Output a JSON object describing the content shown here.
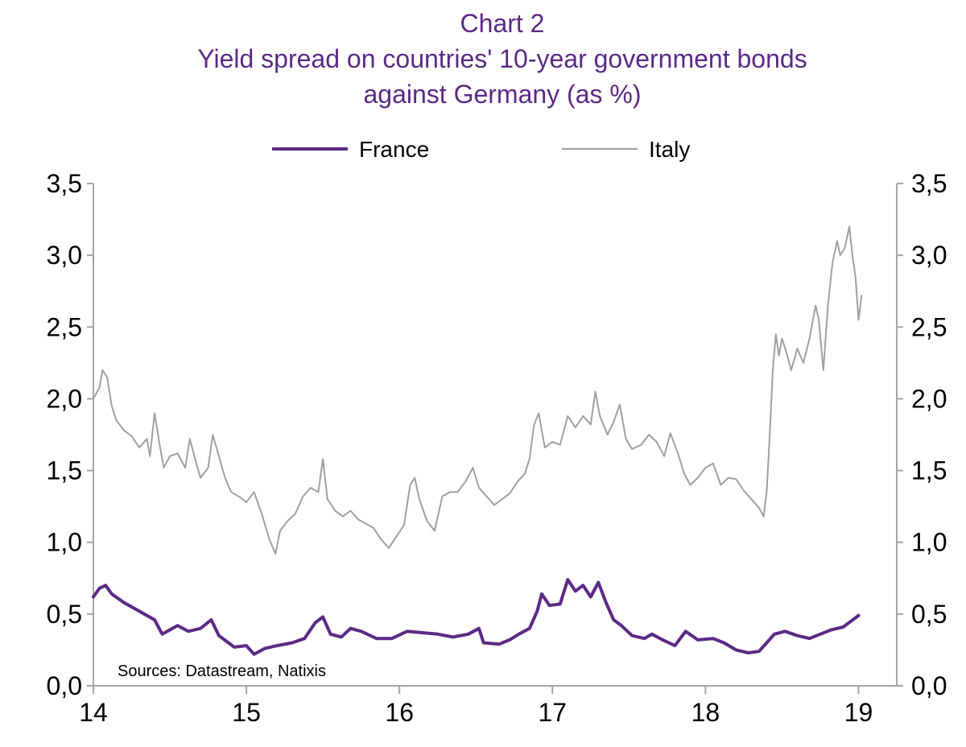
{
  "chart_data": {
    "type": "line",
    "title": [
      "Chart 2",
      "Yield spread on countries' 10-year government bonds",
      "against Germany (as %)"
    ],
    "xlabel": "",
    "ylabel": "",
    "x_ticks": [
      "14",
      "15",
      "16",
      "17",
      "18",
      "19"
    ],
    "y_ticks": [
      "0,0",
      "0,5",
      "1,0",
      "1,5",
      "2,0",
      "2,5",
      "3,0",
      "3,5"
    ],
    "xlim": [
      14,
      19.25
    ],
    "ylim": [
      0,
      3.5
    ],
    "legend_position": "top-center",
    "source": "Sources: Datastream, Natixis",
    "series": [
      {
        "name": "France",
        "color": "#5b2a86",
        "points": [
          [
            14.0,
            0.62
          ],
          [
            14.04,
            0.68
          ],
          [
            14.08,
            0.7
          ],
          [
            14.12,
            0.64
          ],
          [
            14.2,
            0.58
          ],
          [
            14.3,
            0.52
          ],
          [
            14.4,
            0.46
          ],
          [
            14.45,
            0.36
          ],
          [
            14.55,
            0.42
          ],
          [
            14.62,
            0.38
          ],
          [
            14.7,
            0.4
          ],
          [
            14.77,
            0.46
          ],
          [
            14.82,
            0.35
          ],
          [
            14.92,
            0.27
          ],
          [
            15.0,
            0.28
          ],
          [
            15.05,
            0.22
          ],
          [
            15.12,
            0.26
          ],
          [
            15.2,
            0.28
          ],
          [
            15.3,
            0.3
          ],
          [
            15.38,
            0.33
          ],
          [
            15.45,
            0.44
          ],
          [
            15.5,
            0.48
          ],
          [
            15.55,
            0.36
          ],
          [
            15.62,
            0.34
          ],
          [
            15.68,
            0.4
          ],
          [
            15.75,
            0.38
          ],
          [
            15.85,
            0.33
          ],
          [
            15.95,
            0.33
          ],
          [
            16.05,
            0.38
          ],
          [
            16.15,
            0.37
          ],
          [
            16.25,
            0.36
          ],
          [
            16.35,
            0.34
          ],
          [
            16.45,
            0.36
          ],
          [
            16.52,
            0.4
          ],
          [
            16.55,
            0.3
          ],
          [
            16.65,
            0.29
          ],
          [
            16.72,
            0.32
          ],
          [
            16.78,
            0.36
          ],
          [
            16.85,
            0.4
          ],
          [
            16.9,
            0.52
          ],
          [
            16.93,
            0.64
          ],
          [
            16.98,
            0.56
          ],
          [
            17.05,
            0.57
          ],
          [
            17.1,
            0.74
          ],
          [
            17.15,
            0.66
          ],
          [
            17.2,
            0.7
          ],
          [
            17.25,
            0.62
          ],
          [
            17.3,
            0.72
          ],
          [
            17.35,
            0.58
          ],
          [
            17.4,
            0.46
          ],
          [
            17.45,
            0.42
          ],
          [
            17.52,
            0.35
          ],
          [
            17.6,
            0.33
          ],
          [
            17.65,
            0.36
          ],
          [
            17.72,
            0.32
          ],
          [
            17.8,
            0.28
          ],
          [
            17.87,
            0.38
          ],
          [
            17.95,
            0.32
          ],
          [
            18.05,
            0.33
          ],
          [
            18.12,
            0.3
          ],
          [
            18.2,
            0.25
          ],
          [
            18.28,
            0.23
          ],
          [
            18.35,
            0.24
          ],
          [
            18.4,
            0.3
          ],
          [
            18.45,
            0.36
          ],
          [
            18.52,
            0.38
          ],
          [
            18.6,
            0.35
          ],
          [
            18.68,
            0.33
          ],
          [
            18.75,
            0.36
          ],
          [
            18.82,
            0.39
          ],
          [
            18.9,
            0.41
          ],
          [
            18.95,
            0.45
          ],
          [
            19.0,
            0.49
          ]
        ]
      },
      {
        "name": "Italy",
        "color": "#a0a0a0",
        "points": [
          [
            14.0,
            2.0
          ],
          [
            14.04,
            2.08
          ],
          [
            14.06,
            2.2
          ],
          [
            14.09,
            2.15
          ],
          [
            14.12,
            1.95
          ],
          [
            14.15,
            1.85
          ],
          [
            14.2,
            1.78
          ],
          [
            14.25,
            1.74
          ],
          [
            14.3,
            1.66
          ],
          [
            14.35,
            1.72
          ],
          [
            14.37,
            1.6
          ],
          [
            14.4,
            1.9
          ],
          [
            14.43,
            1.7
          ],
          [
            14.46,
            1.52
          ],
          [
            14.5,
            1.6
          ],
          [
            14.55,
            1.62
          ],
          [
            14.6,
            1.52
          ],
          [
            14.63,
            1.72
          ],
          [
            14.67,
            1.56
          ],
          [
            14.7,
            1.45
          ],
          [
            14.75,
            1.52
          ],
          [
            14.78,
            1.75
          ],
          [
            14.82,
            1.6
          ],
          [
            14.86,
            1.45
          ],
          [
            14.9,
            1.35
          ],
          [
            14.95,
            1.32
          ],
          [
            15.0,
            1.28
          ],
          [
            15.05,
            1.35
          ],
          [
            15.1,
            1.2
          ],
          [
            15.15,
            1.02
          ],
          [
            15.19,
            0.92
          ],
          [
            15.22,
            1.08
          ],
          [
            15.27,
            1.15
          ],
          [
            15.32,
            1.2
          ],
          [
            15.37,
            1.32
          ],
          [
            15.42,
            1.38
          ],
          [
            15.47,
            1.35
          ],
          [
            15.5,
            1.58
          ],
          [
            15.53,
            1.3
          ],
          [
            15.58,
            1.22
          ],
          [
            15.63,
            1.18
          ],
          [
            15.68,
            1.22
          ],
          [
            15.73,
            1.16
          ],
          [
            15.78,
            1.13
          ],
          [
            15.83,
            1.1
          ],
          [
            15.88,
            1.02
          ],
          [
            15.93,
            0.96
          ],
          [
            15.98,
            1.04
          ],
          [
            16.03,
            1.12
          ],
          [
            16.07,
            1.4
          ],
          [
            16.1,
            1.45
          ],
          [
            16.13,
            1.3
          ],
          [
            16.18,
            1.15
          ],
          [
            16.23,
            1.08
          ],
          [
            16.28,
            1.32
          ],
          [
            16.33,
            1.35
          ],
          [
            16.38,
            1.35
          ],
          [
            16.43,
            1.42
          ],
          [
            16.48,
            1.52
          ],
          [
            16.52,
            1.38
          ],
          [
            16.57,
            1.32
          ],
          [
            16.62,
            1.26
          ],
          [
            16.67,
            1.3
          ],
          [
            16.72,
            1.34
          ],
          [
            16.77,
            1.42
          ],
          [
            16.82,
            1.48
          ],
          [
            16.85,
            1.58
          ],
          [
            16.88,
            1.82
          ],
          [
            16.91,
            1.9
          ],
          [
            16.95,
            1.66
          ],
          [
            17.0,
            1.7
          ],
          [
            17.05,
            1.68
          ],
          [
            17.1,
            1.88
          ],
          [
            17.15,
            1.8
          ],
          [
            17.2,
            1.88
          ],
          [
            17.25,
            1.82
          ],
          [
            17.28,
            2.05
          ],
          [
            17.31,
            1.88
          ],
          [
            17.36,
            1.75
          ],
          [
            17.4,
            1.84
          ],
          [
            17.44,
            1.96
          ],
          [
            17.48,
            1.72
          ],
          [
            17.52,
            1.65
          ],
          [
            17.58,
            1.68
          ],
          [
            17.63,
            1.75
          ],
          [
            17.68,
            1.7
          ],
          [
            17.73,
            1.6
          ],
          [
            17.77,
            1.76
          ],
          [
            17.82,
            1.62
          ],
          [
            17.86,
            1.48
          ],
          [
            17.9,
            1.4
          ],
          [
            17.95,
            1.45
          ],
          [
            18.0,
            1.52
          ],
          [
            18.05,
            1.55
          ],
          [
            18.1,
            1.4
          ],
          [
            18.15,
            1.45
          ],
          [
            18.2,
            1.44
          ],
          [
            18.25,
            1.36
          ],
          [
            18.3,
            1.3
          ],
          [
            18.35,
            1.24
          ],
          [
            18.38,
            1.18
          ],
          [
            18.4,
            1.35
          ],
          [
            18.42,
            1.75
          ],
          [
            18.44,
            2.2
          ],
          [
            18.46,
            2.45
          ],
          [
            18.48,
            2.3
          ],
          [
            18.5,
            2.42
          ],
          [
            18.53,
            2.32
          ],
          [
            18.56,
            2.2
          ],
          [
            18.6,
            2.35
          ],
          [
            18.64,
            2.25
          ],
          [
            18.68,
            2.42
          ],
          [
            18.72,
            2.65
          ],
          [
            18.74,
            2.55
          ],
          [
            18.77,
            2.2
          ],
          [
            18.8,
            2.65
          ],
          [
            18.83,
            2.95
          ],
          [
            18.86,
            3.1
          ],
          [
            18.88,
            3.0
          ],
          [
            18.91,
            3.05
          ],
          [
            18.94,
            3.2
          ],
          [
            18.96,
            3.0
          ],
          [
            18.98,
            2.85
          ],
          [
            19.0,
            2.55
          ],
          [
            19.02,
            2.72
          ]
        ]
      }
    ]
  }
}
